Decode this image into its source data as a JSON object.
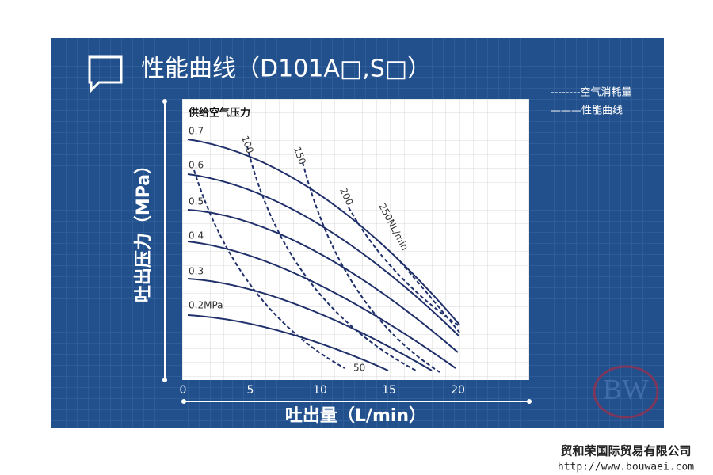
{
  "header": {
    "title": "性能曲线（D101A□,S□）"
  },
  "legend": {
    "dashed": "--------空气消耗量",
    "solid": "———性能曲线"
  },
  "plot": {
    "supply_label": "供给空气压力",
    "pressure_labels": [
      "0.7",
      "0.6",
      "0.5",
      "0.4",
      "0.3",
      "0.2MPa"
    ],
    "air_labels": [
      "50",
      "100",
      "150",
      "200",
      "250NL/min"
    ],
    "x_ticks": [
      "0",
      "5",
      "10",
      "15",
      "20"
    ],
    "x_label": "吐出量（L/min）",
    "y_label": "吐出压力（MPa）"
  },
  "footer": {
    "company": "贸和荣国际贸易有限公司",
    "url": "http://www.bouwaei.com"
  }
}
